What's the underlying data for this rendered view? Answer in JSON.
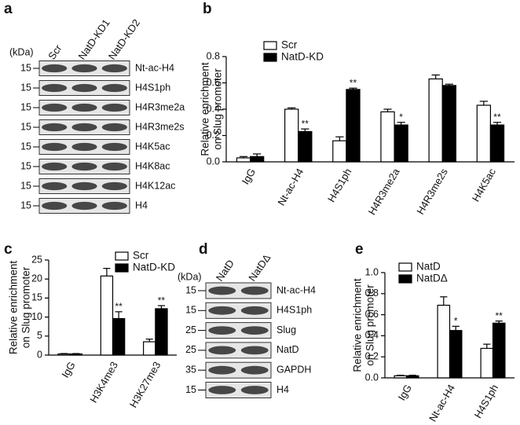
{
  "chart_data": [
    {
      "type": "bar",
      "panel": "b",
      "ylabel": [
        "Relative enrichment",
        "on Slug promoter"
      ],
      "categories": [
        "IgG",
        "Nt-ac-H4",
        "H4S1ph",
        "H4R3me2a",
        "H4R3me2s",
        "H4K5ac"
      ],
      "series": [
        {
          "name": "Scr",
          "color": "#ffffff",
          "values": [
            0.03,
            0.4,
            0.16,
            0.38,
            0.63,
            0.43
          ],
          "errors": [
            0.01,
            0.01,
            0.03,
            0.02,
            0.03,
            0.03
          ],
          "significance": [
            null,
            null,
            null,
            null,
            null,
            null
          ]
        },
        {
          "name": "NatD-KD",
          "color": "#000000",
          "values": [
            0.04,
            0.23,
            0.55,
            0.28,
            0.58,
            0.28
          ],
          "errors": [
            0.02,
            0.02,
            0.01,
            0.02,
            0.01,
            0.02
          ],
          "significance": [
            null,
            "**",
            "**",
            "*",
            null,
            "**"
          ]
        }
      ],
      "ylim": [
        0,
        0.8
      ],
      "yticks": [
        {
          "value": 0,
          "label": "0.0"
        },
        0.2,
        0.4,
        0.6,
        0.8
      ],
      "legend": "upper left"
    },
    {
      "type": "bar",
      "panel": "c",
      "ylabel": [
        "Relative enrichment",
        "on Slug promoter"
      ],
      "categories": [
        "IgG",
        "H3K4me3",
        "H3K27me3"
      ],
      "series": [
        {
          "name": "Scr",
          "color": "#ffffff",
          "values": [
            0.3,
            20.8,
            3.5
          ],
          "errors": [
            0.1,
            2.0,
            0.7
          ],
          "significance": [
            null,
            null,
            null
          ]
        },
        {
          "name": "NatD-KD",
          "color": "#000000",
          "values": [
            0.3,
            9.6,
            12.2
          ],
          "errors": [
            0.1,
            1.8,
            0.8
          ],
          "significance": [
            null,
            "**",
            "**"
          ]
        }
      ],
      "ylim": [
        0,
        25
      ],
      "yticks": [
        0,
        5,
        10,
        15,
        20,
        25
      ],
      "legend": "upper right"
    },
    {
      "type": "bar",
      "panel": "e",
      "ylabel": [
        "Relative enrichment",
        "on Slug promoter"
      ],
      "categories": [
        "IgG",
        "Nt-ac-H4",
        "H4S1ph"
      ],
      "series": [
        {
          "name": "NatD",
          "color": "#ffffff",
          "values": [
            0.02,
            0.69,
            0.28
          ],
          "errors": [
            0.005,
            0.08,
            0.04
          ],
          "significance": [
            null,
            null,
            null
          ]
        },
        {
          "name": "NatDΔ",
          "color": "#000000",
          "values": [
            0.02,
            0.45,
            0.52
          ],
          "errors": [
            0.005,
            0.04,
            0.02
          ],
          "significance": [
            null,
            "*",
            "**"
          ]
        }
      ],
      "ylim": [
        0,
        1
      ],
      "yticks": [
        {
          "value": 0,
          "label": "0.0"
        },
        0.2,
        0.4,
        0.6,
        0.8,
        {
          "value": 1,
          "label": "1.0"
        }
      ],
      "legend": "upper left"
    }
  ],
  "blots": [
    {
      "panel": "a",
      "unit": "(kDa)",
      "lanes": [
        "Scr",
        "NatD-KD1",
        "NatD-KD2"
      ],
      "rows": [
        {
          "mw": "15",
          "label": "Nt-ac-H4"
        },
        {
          "mw": "15",
          "label": "H4S1ph"
        },
        {
          "mw": "15",
          "label": "H4R3me2a"
        },
        {
          "mw": "15",
          "label": "H4R3me2s"
        },
        {
          "mw": "15",
          "label": "H4K5ac"
        },
        {
          "mw": "15",
          "label": "H4K8ac"
        },
        {
          "mw": "15",
          "label": "H4K12ac"
        },
        {
          "mw": "15",
          "label": "H4"
        }
      ]
    },
    {
      "panel": "d",
      "unit": "(kDa)",
      "lanes": [
        "NatD",
        "NatDΔ"
      ],
      "rows": [
        {
          "mw": "15",
          "label": "Nt-ac-H4"
        },
        {
          "mw": "15",
          "label": "H4S1ph"
        },
        {
          "mw": "25",
          "label": "Slug"
        },
        {
          "mw": "25",
          "label": "NatD"
        },
        {
          "mw": "35",
          "label": "GAPDH"
        },
        {
          "mw": "15",
          "label": "H4"
        }
      ]
    }
  ]
}
